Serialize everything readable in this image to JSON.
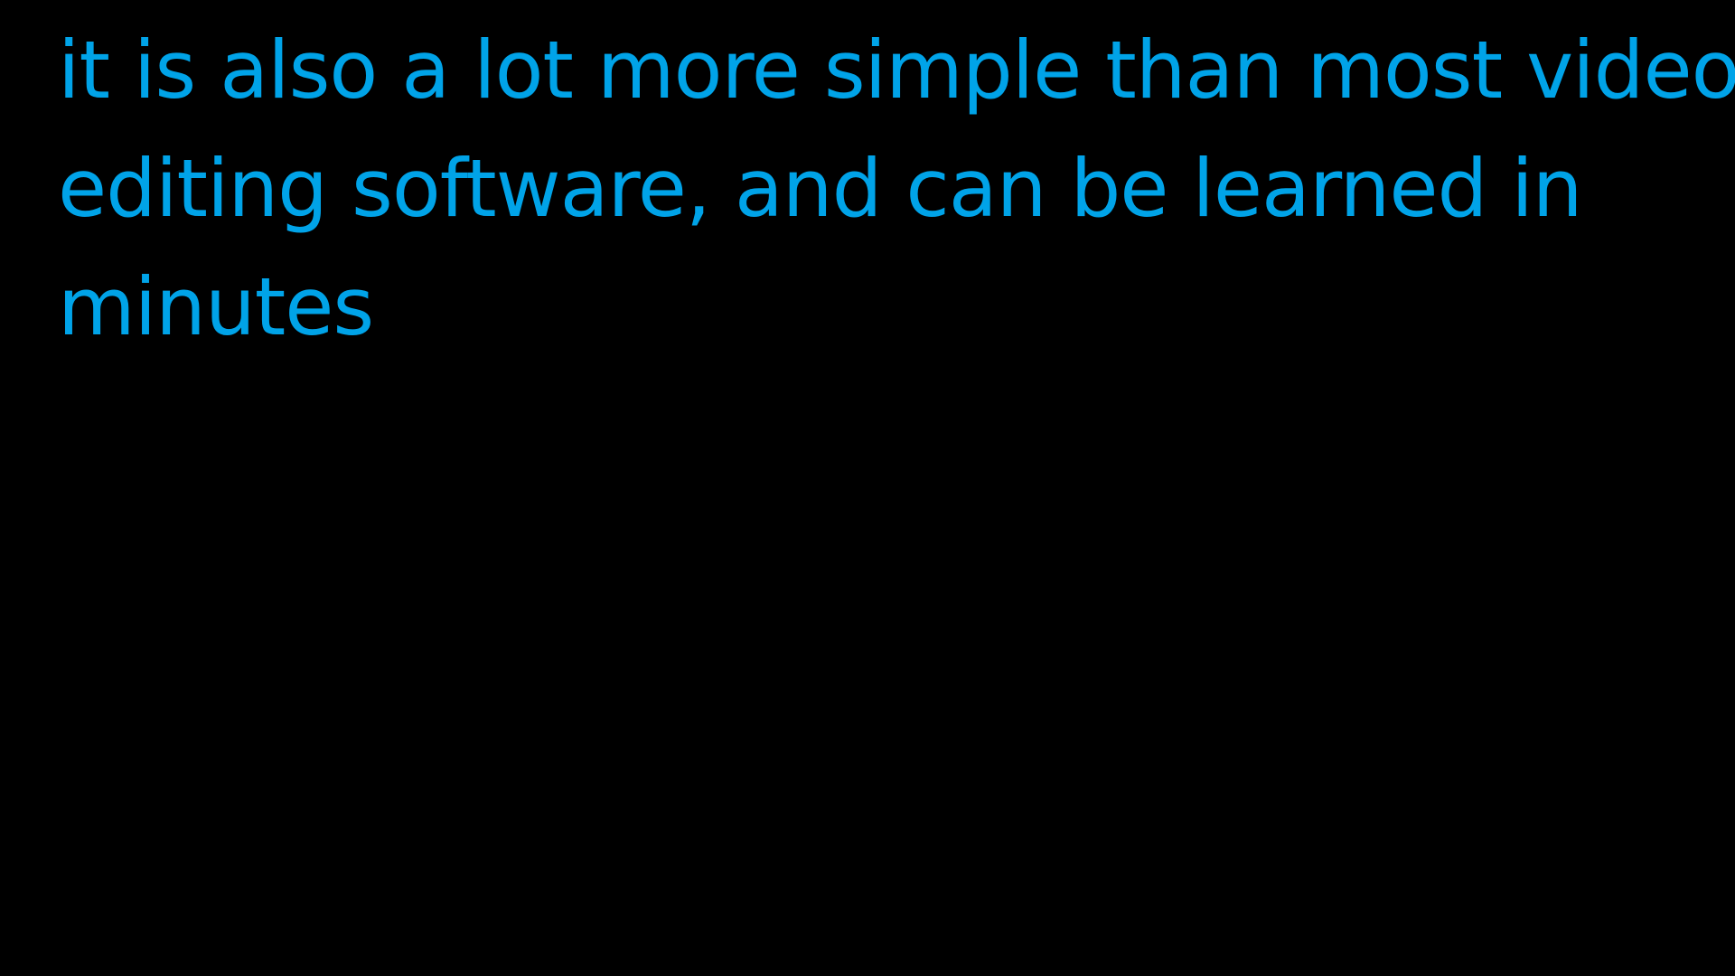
{
  "slide": {
    "background_color": "#000000",
    "text_color": "#00a3e8",
    "caption_lines": [
      "it is also a lot more simple than most video",
      "editing software, and can be learned in",
      "minutes"
    ]
  }
}
